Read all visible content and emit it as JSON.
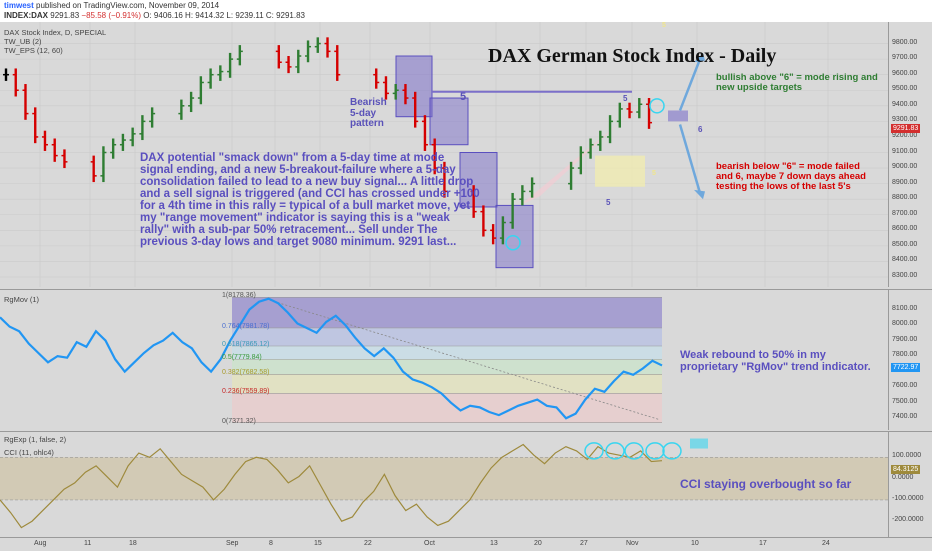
{
  "header": {
    "user": "timwest",
    "published": "published on TradingView.com, November 09, 2014",
    "symbol": "INDEX:DAX",
    "last": "9291.83",
    "change": "−85.58 (−0.91%)",
    "ohlc": "O: 9406.16  H: 9414.32  L: 9239.11  C: 9291.83"
  },
  "main": {
    "title_small": "DAX Stock Index, D, SPECIAL",
    "indicator1": "TW_UB (2)",
    "indicator2": "TW_EPS (12, 60)",
    "headline": "DAX German Stock Index - Daily",
    "pattern_label": "Bearish 5-day pattern",
    "commentary": "DAX potential \"smack down\" from a 5-day time at mode signal ending, and a new 5-breakout-failure where a 5-day consolidation failed to lead to a new buy signal... A little drop and a sell signal is triggered (and CCI has crossed under +100 for a 4th time in this rally = typical of a bull market move, yet my \"range movement\" indicator is saying this is a \"weak rally\" with a sub-par 50% retracement... Sell under The previous 3-day lows and target 9080 minimum. 9291 last...",
    "bullish_note": "bullish above \"6\" = mode rising and new upside targets",
    "bearish_note": "bearish below \"6\" = mode failed and 6, maybe 7 down days ahead testing the lows of the last 5's",
    "price_tag": "9291.83",
    "counts": {
      "five_a": "5",
      "five_b": "5",
      "five_c": "5",
      "six": "6",
      "s1": "5",
      "s2": "5"
    },
    "price_ticks": [
      "9800.00",
      "9700.00",
      "9600.00",
      "9500.00",
      "9400.00",
      "9300.00",
      "9200.00",
      "9100.00",
      "9000.00",
      "8900.00",
      "8800.00",
      "8700.00",
      "8600.00",
      "8500.00",
      "8400.00",
      "8300.00"
    ]
  },
  "rgmov": {
    "label": "RgMov (1)",
    "tag": "7722.97",
    "comment": "Weak rebound to 50% in my proprietary \"RgMov\" trend indicator.",
    "fib_labels": [
      "1(8178.36)",
      "0.764(7981.78)",
      "0.618(7865.12)",
      "0.5(7779.84)",
      "0.382(7682.58)",
      "0.236(7559.89)",
      "0(7371.32)"
    ],
    "ticks": [
      "8100.00",
      "8000.00",
      "7900.00",
      "7800.00",
      "7700.00",
      "7600.00",
      "7500.00",
      "7400.00"
    ],
    "series": [
      8050,
      7990,
      7960,
      7880,
      7820,
      7760,
      7800,
      7790,
      7890,
      7860,
      7960,
      7900,
      7780,
      7700,
      7760,
      7820,
      7870,
      7900,
      7950,
      7890,
      7850,
      7760,
      7700,
      7780,
      7900,
      8000,
      8100,
      8150,
      8170,
      8140,
      8080,
      8010,
      7980,
      7950,
      8020,
      8060,
      8000,
      7920,
      7850,
      7800,
      7850,
      7790,
      7700,
      7650,
      7630,
      7600,
      7560,
      7500,
      7450,
      7480,
      7470,
      7440,
      7420,
      7450,
      7480,
      7500,
      7520,
      7480,
      7470,
      7400,
      7430,
      7520,
      7590,
      7570,
      7640,
      7700,
      7680,
      7720,
      7770,
      7740
    ]
  },
  "cci": {
    "label1": "RgExp (1, false, 2)",
    "label2": "CCI (11, ohlc4)",
    "tag": "84.3125",
    "comment": "CCI staying overbought so far",
    "ticks": [
      "100.0000",
      "0.0000",
      "-100.0000",
      "-200.0000"
    ],
    "series": [
      -100,
      -160,
      -230,
      -200,
      -150,
      -100,
      -50,
      -20,
      30,
      60,
      10,
      -40,
      60,
      120,
      100,
      140,
      80,
      20,
      -10,
      -40,
      -100,
      -50,
      20,
      80,
      100,
      90,
      40,
      -20,
      10,
      60,
      -30,
      -120,
      -200,
      -180,
      -110,
      -60,
      20,
      -80,
      -150,
      -120,
      -180,
      -220,
      -200,
      -150,
      -100,
      -20,
      50,
      100,
      130,
      160,
      110,
      70,
      120,
      150,
      130,
      90,
      150,
      120,
      110,
      100,
      130,
      80,
      84
    ]
  },
  "xaxis": {
    "labels": [
      "Aug",
      "11",
      "18",
      "Sep",
      "8",
      "15",
      "22",
      "Oct",
      "13",
      "20",
      "27",
      "Nov",
      "10",
      "17",
      "24"
    ]
  },
  "chart_data": [
    {
      "type": "bar",
      "title": "DAX German Stock Index - Daily",
      "ohlc_daily_closes_approx": [
        9600,
        9500,
        9350,
        9200,
        9150,
        9080,
        9040,
        8950,
        9100,
        9150,
        9180,
        9220,
        9300,
        9350,
        9400,
        9450,
        9550,
        9600,
        9620,
        9700,
        9750,
        9680,
        9650,
        9720,
        9780,
        9800,
        9750,
        9600,
        9550,
        9480,
        9500,
        9450,
        9300,
        9150,
        9000,
        8850,
        8720,
        8600,
        8550,
        8650,
        8800,
        8850,
        8900,
        9000,
        9100,
        9150,
        9200,
        9300,
        9380,
        9360,
        9410,
        9291.83
      ],
      "ylim": [
        8300,
        9900
      ],
      "labels": {
        "bar_colors": {
          "up": "#2e7d32",
          "down": "#d50000",
          "neutral": "#000000"
        }
      }
    },
    {
      "type": "line",
      "title": "RgMov (1)",
      "ylim": [
        7350,
        8200
      ],
      "color": "#2196f3",
      "fib_levels": [
        8178.36,
        7981.78,
        7865.12,
        7779.84,
        7682.58,
        7559.89,
        7371.32
      ]
    },
    {
      "type": "line",
      "title": "CCI (11, ohlc4)",
      "ylim": [
        -260,
        200
      ],
      "color": "#9e8a3c"
    }
  ]
}
